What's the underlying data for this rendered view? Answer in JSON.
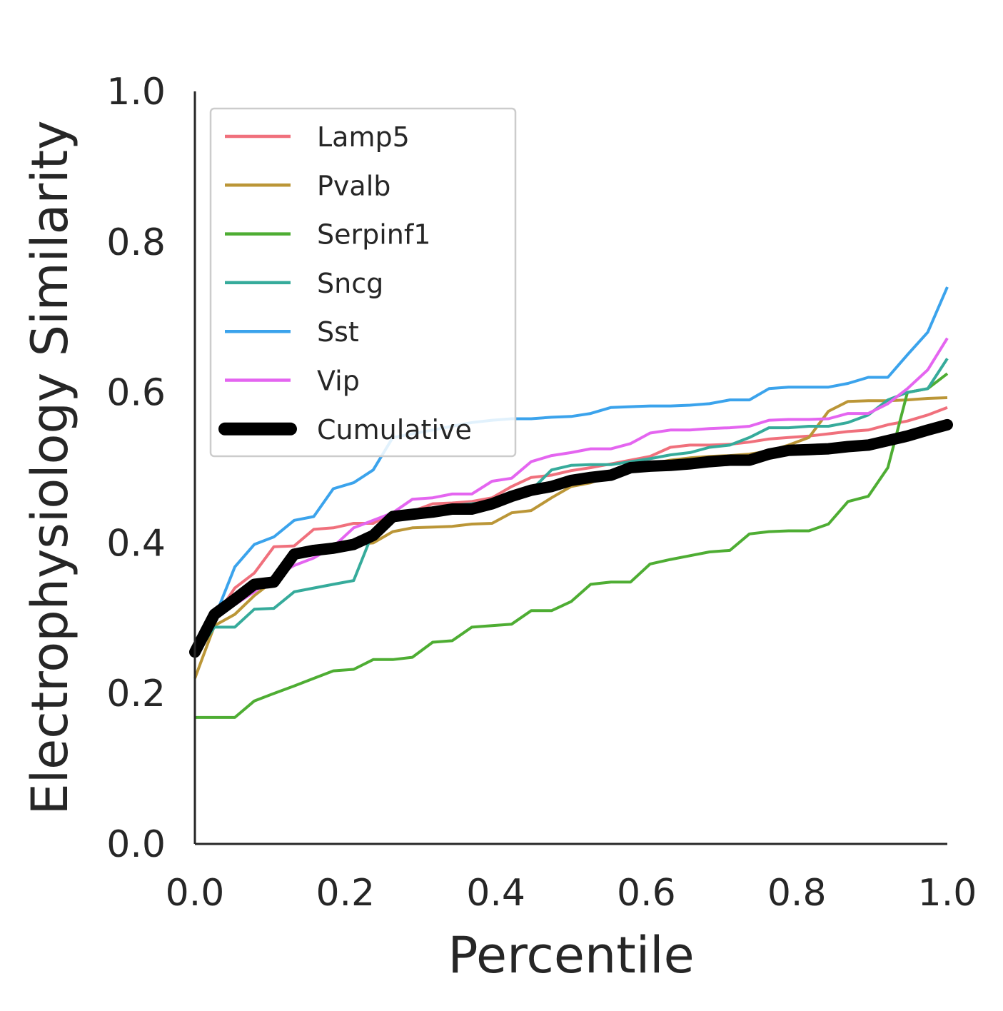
{
  "chart_data": {
    "type": "line",
    "title": "",
    "xlabel": "Percentile",
    "ylabel": "Electrophysiology Similarity",
    "xlim": [
      0,
      1
    ],
    "ylim": [
      0,
      1
    ],
    "xticks": [
      "0.0",
      "0.2",
      "0.4",
      "0.6",
      "0.8",
      "1.0"
    ],
    "yticks": [
      "0.0",
      "0.2",
      "0.4",
      "0.6",
      "0.8",
      "1.0"
    ],
    "grid": false,
    "legend_position": "top-left",
    "series": [
      {
        "name": "Lamp5",
        "color": "#f0707c",
        "width": "thin",
        "x": [
          0.0,
          0.026,
          0.053,
          0.079,
          0.105,
          0.132,
          0.158,
          0.184,
          0.211,
          0.237,
          0.263,
          0.289,
          0.316,
          0.342,
          0.368,
          0.395,
          0.421,
          0.447,
          0.474,
          0.5,
          0.526,
          0.553,
          0.579,
          0.605,
          0.632,
          0.658,
          0.684,
          0.711,
          0.737,
          0.763,
          0.789,
          0.816,
          0.842,
          0.868,
          0.895,
          0.921,
          0.947,
          0.974,
          1.0
        ],
        "y": [
          0.26,
          0.3,
          0.34,
          0.36,
          0.395,
          0.396,
          0.418,
          0.42,
          0.426,
          0.426,
          0.44,
          0.442,
          0.452,
          0.453,
          0.455,
          0.46,
          0.475,
          0.487,
          0.49,
          0.496,
          0.5,
          0.505,
          0.51,
          0.515,
          0.527,
          0.53,
          0.53,
          0.531,
          0.534,
          0.538,
          0.54,
          0.542,
          0.545,
          0.548,
          0.55,
          0.557,
          0.562,
          0.57,
          0.58
        ]
      },
      {
        "name": "Pvalb",
        "color": "#bb9637",
        "width": "thin",
        "x": [
          0.0,
          0.026,
          0.053,
          0.079,
          0.105,
          0.132,
          0.158,
          0.184,
          0.211,
          0.237,
          0.263,
          0.289,
          0.316,
          0.342,
          0.368,
          0.395,
          0.421,
          0.447,
          0.474,
          0.5,
          0.526,
          0.553,
          0.579,
          0.605,
          0.632,
          0.658,
          0.684,
          0.711,
          0.737,
          0.763,
          0.789,
          0.816,
          0.842,
          0.868,
          0.895,
          0.921,
          0.947,
          0.974,
          1.0
        ],
        "y": [
          0.22,
          0.29,
          0.305,
          0.33,
          0.35,
          0.38,
          0.39,
          0.395,
          0.398,
          0.4,
          0.415,
          0.42,
          0.421,
          0.422,
          0.425,
          0.426,
          0.44,
          0.443,
          0.46,
          0.475,
          0.48,
          0.49,
          0.5,
          0.505,
          0.51,
          0.513,
          0.515,
          0.516,
          0.518,
          0.522,
          0.53,
          0.54,
          0.575,
          0.588,
          0.589,
          0.589,
          0.59,
          0.592,
          0.593
        ]
      },
      {
        "name": "Serpinf1",
        "color": "#4ead33",
        "width": "thin",
        "x": [
          0.0,
          0.026,
          0.053,
          0.079,
          0.105,
          0.132,
          0.158,
          0.184,
          0.211,
          0.237,
          0.263,
          0.289,
          0.316,
          0.342,
          0.368,
          0.395,
          0.421,
          0.447,
          0.474,
          0.5,
          0.526,
          0.553,
          0.579,
          0.605,
          0.632,
          0.658,
          0.684,
          0.711,
          0.737,
          0.763,
          0.789,
          0.816,
          0.842,
          0.868,
          0.895,
          0.921,
          0.947,
          0.974,
          1.0
        ],
        "y": [
          0.168,
          0.168,
          0.168,
          0.19,
          0.2,
          0.21,
          0.22,
          0.23,
          0.232,
          0.245,
          0.245,
          0.248,
          0.268,
          0.27,
          0.288,
          0.29,
          0.292,
          0.31,
          0.31,
          0.322,
          0.345,
          0.348,
          0.348,
          0.372,
          0.378,
          0.383,
          0.388,
          0.39,
          0.412,
          0.415,
          0.416,
          0.416,
          0.425,
          0.455,
          0.462,
          0.5,
          0.6,
          0.605,
          0.625
        ]
      },
      {
        "name": "Sncg",
        "color": "#36ab9b",
        "width": "thin",
        "x": [
          0.0,
          0.026,
          0.053,
          0.079,
          0.105,
          0.132,
          0.158,
          0.184,
          0.211,
          0.237,
          0.263,
          0.289,
          0.316,
          0.342,
          0.368,
          0.395,
          0.421,
          0.447,
          0.474,
          0.5,
          0.526,
          0.553,
          0.579,
          0.605,
          0.632,
          0.658,
          0.684,
          0.711,
          0.737,
          0.763,
          0.789,
          0.816,
          0.842,
          0.868,
          0.895,
          0.921,
          0.947,
          0.974,
          1.0
        ],
        "y": [
          0.25,
          0.288,
          0.288,
          0.312,
          0.313,
          0.335,
          0.34,
          0.345,
          0.35,
          0.415,
          0.436,
          0.44,
          0.445,
          0.45,
          0.452,
          0.455,
          0.46,
          0.47,
          0.497,
          0.503,
          0.504,
          0.504,
          0.508,
          0.512,
          0.517,
          0.52,
          0.527,
          0.53,
          0.54,
          0.553,
          0.553,
          0.555,
          0.555,
          0.56,
          0.57,
          0.59,
          0.6,
          0.605,
          0.645
        ]
      },
      {
        "name": "Sst",
        "color": "#3ba3ec",
        "width": "thin",
        "x": [
          0.0,
          0.026,
          0.053,
          0.079,
          0.105,
          0.132,
          0.158,
          0.184,
          0.211,
          0.237,
          0.263,
          0.289,
          0.316,
          0.342,
          0.368,
          0.395,
          0.421,
          0.447,
          0.474,
          0.5,
          0.526,
          0.553,
          0.579,
          0.605,
          0.632,
          0.658,
          0.684,
          0.711,
          0.737,
          0.763,
          0.789,
          0.816,
          0.842,
          0.868,
          0.895,
          0.921,
          0.947,
          0.974,
          1.0
        ],
        "y": [
          0.26,
          0.3,
          0.368,
          0.398,
          0.408,
          0.43,
          0.435,
          0.472,
          0.48,
          0.497,
          0.54,
          0.545,
          0.55,
          0.555,
          0.56,
          0.563,
          0.565,
          0.565,
          0.567,
          0.568,
          0.572,
          0.58,
          0.581,
          0.582,
          0.582,
          0.583,
          0.585,
          0.59,
          0.59,
          0.605,
          0.607,
          0.607,
          0.607,
          0.612,
          0.62,
          0.62,
          0.65,
          0.68,
          0.74
        ]
      },
      {
        "name": "Vip",
        "color": "#e465f0",
        "width": "thin",
        "x": [
          0.0,
          0.026,
          0.053,
          0.079,
          0.105,
          0.132,
          0.158,
          0.184,
          0.211,
          0.237,
          0.263,
          0.289,
          0.316,
          0.342,
          0.368,
          0.395,
          0.421,
          0.447,
          0.474,
          0.5,
          0.526,
          0.553,
          0.579,
          0.605,
          0.632,
          0.658,
          0.684,
          0.711,
          0.737,
          0.763,
          0.789,
          0.816,
          0.842,
          0.868,
          0.895,
          0.921,
          0.947,
          0.974,
          1.0
        ],
        "y": [
          0.26,
          0.3,
          0.318,
          0.335,
          0.355,
          0.37,
          0.38,
          0.395,
          0.42,
          0.43,
          0.44,
          0.458,
          0.46,
          0.465,
          0.465,
          0.482,
          0.486,
          0.508,
          0.516,
          0.52,
          0.525,
          0.525,
          0.532,
          0.546,
          0.55,
          0.55,
          0.552,
          0.553,
          0.555,
          0.563,
          0.564,
          0.564,
          0.565,
          0.572,
          0.572,
          0.585,
          0.605,
          0.63,
          0.672
        ]
      },
      {
        "name": "Cumulative",
        "color": "#000000",
        "width": "thick",
        "x": [
          0.0,
          0.026,
          0.053,
          0.079,
          0.105,
          0.132,
          0.158,
          0.184,
          0.211,
          0.237,
          0.263,
          0.289,
          0.316,
          0.342,
          0.368,
          0.395,
          0.421,
          0.447,
          0.474,
          0.5,
          0.526,
          0.553,
          0.579,
          0.605,
          0.632,
          0.658,
          0.684,
          0.711,
          0.737,
          0.763,
          0.789,
          0.816,
          0.842,
          0.868,
          0.895,
          0.921,
          0.947,
          0.974,
          1.0
        ],
        "y": [
          0.255,
          0.305,
          0.325,
          0.345,
          0.348,
          0.385,
          0.39,
          0.393,
          0.398,
          0.41,
          0.435,
          0.438,
          0.441,
          0.445,
          0.445,
          0.452,
          0.462,
          0.47,
          0.475,
          0.483,
          0.487,
          0.49,
          0.5,
          0.502,
          0.503,
          0.505,
          0.508,
          0.51,
          0.51,
          0.518,
          0.523,
          0.524,
          0.525,
          0.528,
          0.53,
          0.536,
          0.542,
          0.55,
          0.557
        ]
      }
    ]
  }
}
